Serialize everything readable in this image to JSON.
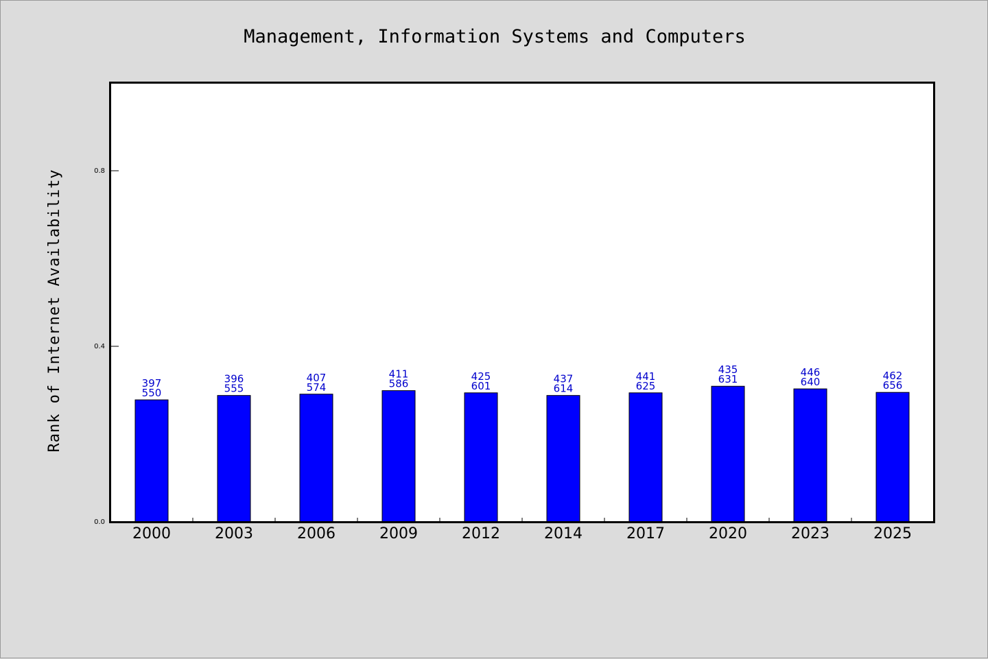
{
  "chart_data": {
    "type": "bar",
    "title": "Management, Information Systems and Computers",
    "xlabel": "",
    "ylabel": "Rank of Internet Availability",
    "ylim": [
      0,
      1.0
    ],
    "yticks": [
      "0.0",
      "0.4",
      "0.8"
    ],
    "yticks_values": [
      0.0,
      0.4,
      0.8
    ],
    "grid": false,
    "bar_color": "#0000ff",
    "label_color": "#0000cc",
    "categories": [
      "2000",
      "2003",
      "2006",
      "2009",
      "2012",
      "2014",
      "2017",
      "2020",
      "2023",
      "2025"
    ],
    "values": [
      0.278,
      0.288,
      0.291,
      0.299,
      0.294,
      0.288,
      0.294,
      0.309,
      0.303,
      0.295
    ],
    "annotations": [
      [
        "397",
        "550"
      ],
      [
        "396",
        "555"
      ],
      [
        "407",
        "574"
      ],
      [
        "411",
        "586"
      ],
      [
        "425",
        "601"
      ],
      [
        "437",
        "614"
      ],
      [
        "441",
        "625"
      ],
      [
        "435",
        "631"
      ],
      [
        "446",
        "640"
      ],
      [
        "462",
        "656"
      ]
    ]
  }
}
